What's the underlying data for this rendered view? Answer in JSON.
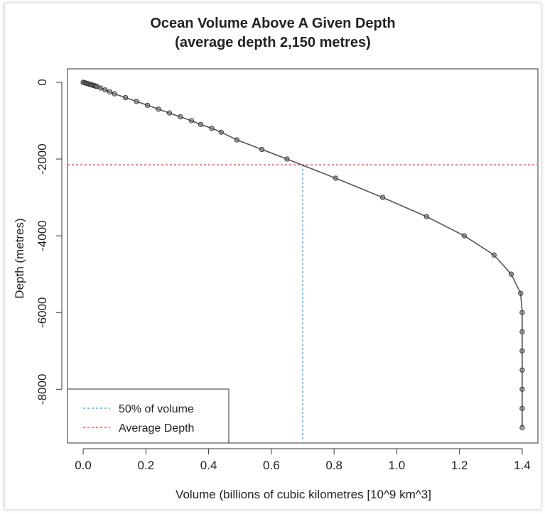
{
  "chart_data": {
    "type": "line",
    "title": "Ocean Volume Above A Given Depth",
    "subtitle": "(average depth 2,150 metres)",
    "xlabel": "Volume (billions of cubic kilometres [10^9 km^3]",
    "ylabel": "Depth  (metres)",
    "xlim": [
      -0.05,
      1.45
    ],
    "ylim": [
      -9400,
      350
    ],
    "x_ticks": [
      0.0,
      0.2,
      0.4,
      0.6,
      0.8,
      1.0,
      1.2,
      1.4
    ],
    "x_tick_labels": [
      "0.0",
      "0.2",
      "0.4",
      "0.6",
      "0.8",
      "1.0",
      "1.2",
      "1.4"
    ],
    "y_ticks": [
      0,
      -2000,
      -4000,
      -6000,
      -8000
    ],
    "y_tick_labels": [
      "0",
      "-2000",
      "-4000",
      "-6000",
      "-8000"
    ],
    "grid": false,
    "legend_position": "bottom-left",
    "series": [
      {
        "x": [
          0.0,
          0.004,
          0.008,
          0.012,
          0.016,
          0.02,
          0.024,
          0.028,
          0.032,
          0.036,
          0.04,
          0.044,
          0.056,
          0.07,
          0.085,
          0.1,
          0.135,
          0.17,
          0.205,
          0.24,
          0.275,
          0.31,
          0.345,
          0.375,
          0.41,
          0.44,
          0.49,
          0.57,
          0.65,
          0.805,
          0.955,
          1.095,
          1.215,
          1.31,
          1.365,
          1.395,
          1.4,
          1.4,
          1.4,
          1.4,
          1.4,
          1.4,
          1.4
        ],
        "y": [
          0,
          -10,
          -20,
          -30,
          -40,
          -50,
          -60,
          -70,
          -80,
          -90,
          -100,
          -110,
          -150,
          -200,
          -250,
          -300,
          -400,
          -500,
          -600,
          -700,
          -800,
          -900,
          -1000,
          -1100,
          -1200,
          -1300,
          -1500,
          -1750,
          -2000,
          -2500,
          -3000,
          -3500,
          -4000,
          -4500,
          -5000,
          -5500,
          -6000,
          -6500,
          -7000,
          -7500,
          -8000,
          -8500,
          -9000
        ],
        "color": "#555555"
      }
    ],
    "reference_lines": [
      {
        "label": "50% of volume",
        "orientation": "vertical",
        "x": 0.7,
        "y_range": [
          -9400,
          -2150
        ],
        "color": "#7ec3ea",
        "style": "dotted"
      },
      {
        "label": "Average Depth",
        "orientation": "horizontal",
        "y": -2150,
        "color": "#f08080",
        "style": "dotted"
      }
    ]
  }
}
